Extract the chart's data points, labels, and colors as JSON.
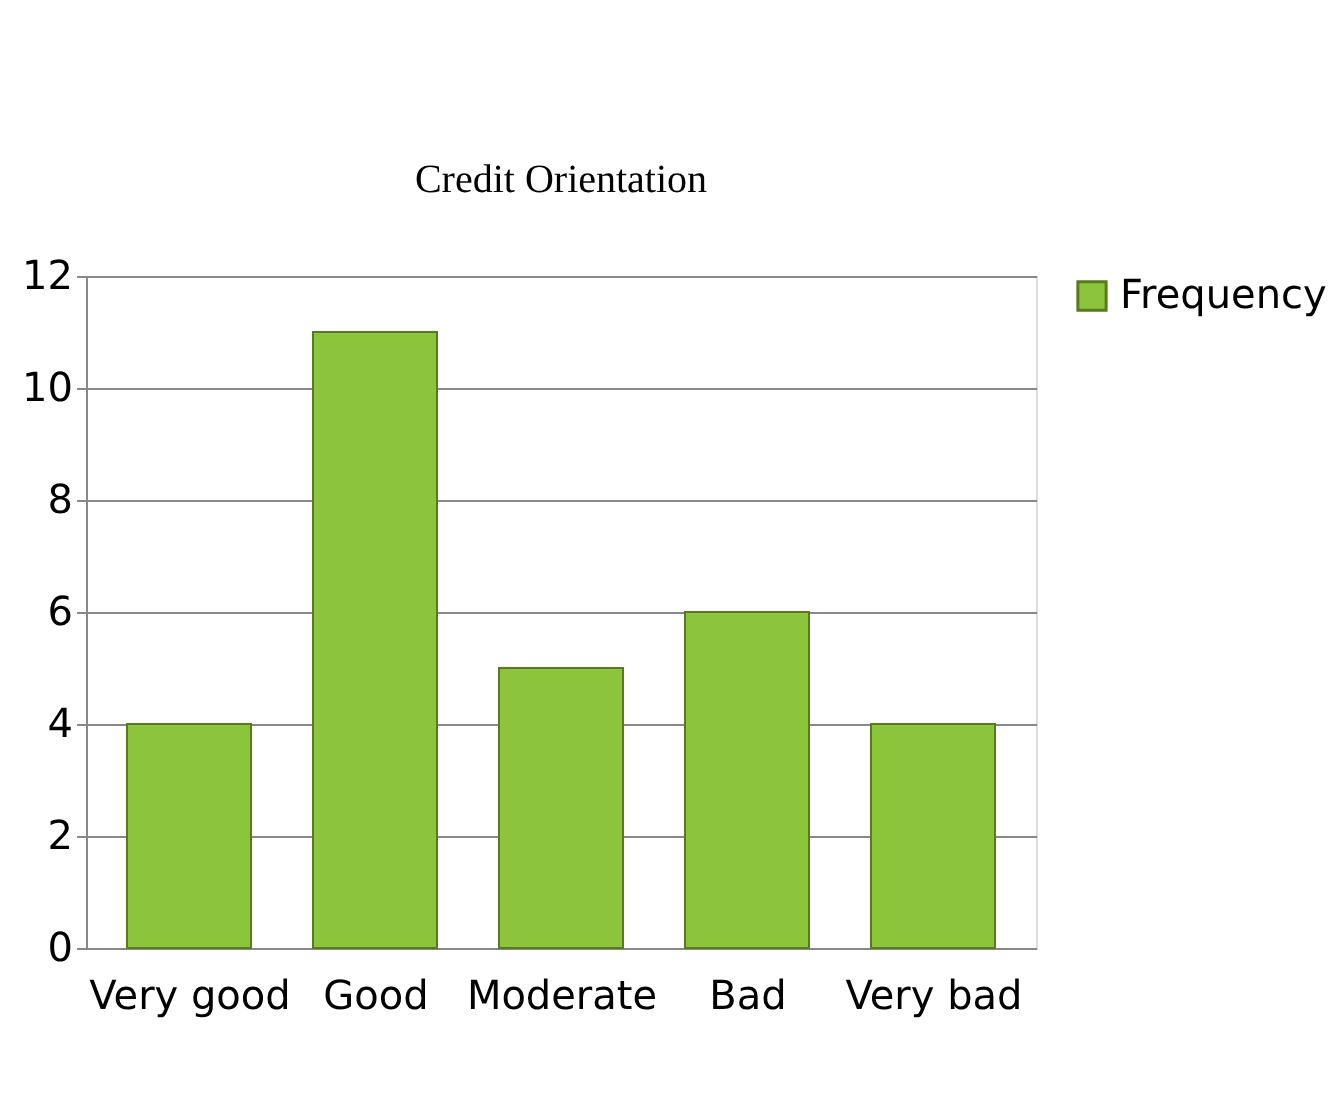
{
  "chart_data": {
    "type": "bar",
    "title": "Credit Orientation",
    "categories": [
      "Very good",
      "Good",
      "Moderate",
      "Bad",
      "Very bad"
    ],
    "series": [
      {
        "name": "Frequency",
        "color": "#8cc43c",
        "values": [
          4,
          11,
          5,
          6,
          4
        ]
      }
    ],
    "ylim": [
      0,
      12
    ],
    "yticks": [
      0,
      2,
      4,
      6,
      8,
      10,
      12
    ],
    "grid": "y",
    "legend": "right"
  }
}
